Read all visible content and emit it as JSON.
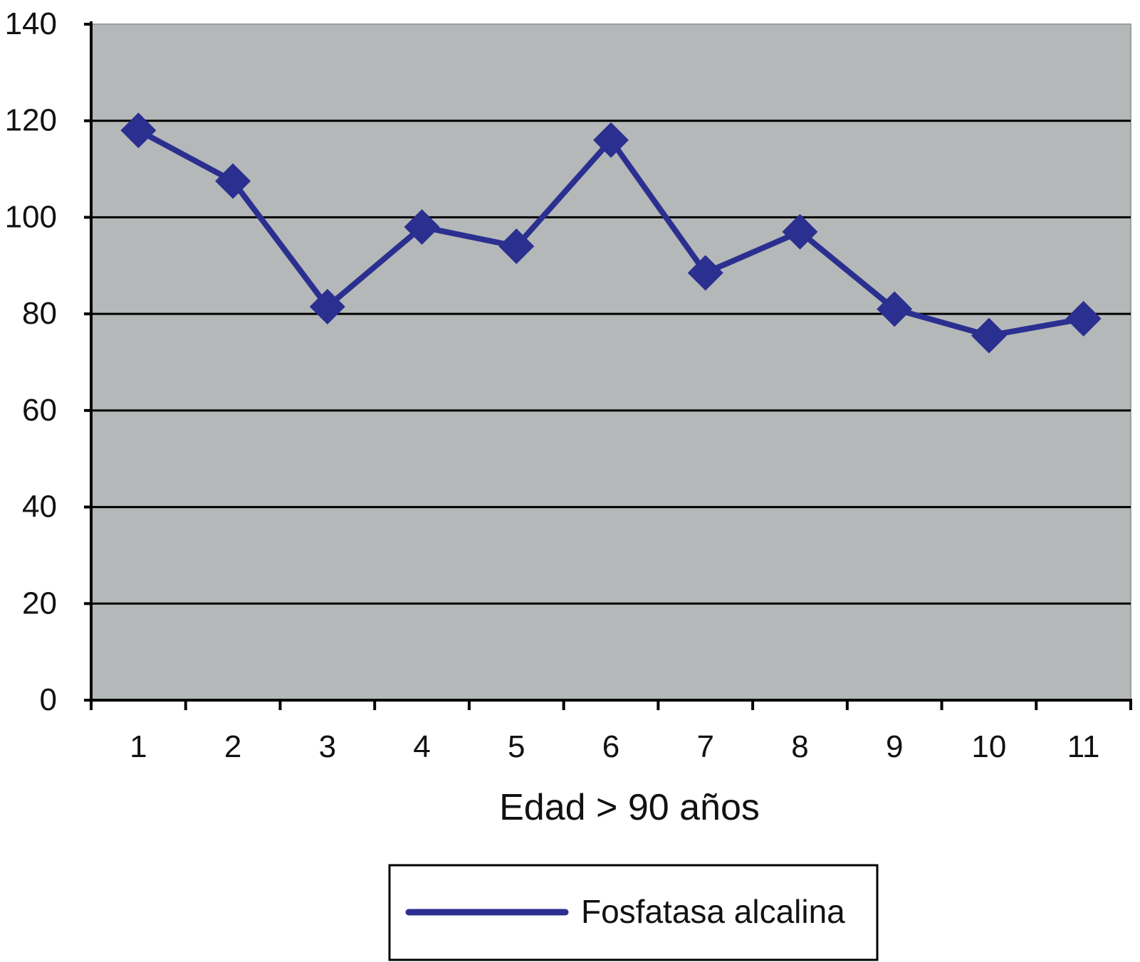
{
  "chart_data": {
    "type": "line",
    "title": "",
    "xlabel": "Edad > 90 años",
    "ylabel": "",
    "categories": [
      "1",
      "2",
      "3",
      "4",
      "5",
      "6",
      "7",
      "8",
      "9",
      "10",
      "11"
    ],
    "series": [
      {
        "name": "Fosfatasa alcalina",
        "values": [
          118,
          107.5,
          81.5,
          98,
          94,
          116,
          88.5,
          97,
          81,
          75.5,
          79
        ],
        "color": "#2b2f8f",
        "marker": "diamond"
      }
    ],
    "ylim": [
      0,
      140
    ],
    "yticks": [
      "0",
      "20",
      "40",
      "60",
      "80",
      "100",
      "120",
      "140"
    ],
    "grid": true,
    "legend_position": "bottom",
    "plot_background": "#b4b8b8"
  }
}
